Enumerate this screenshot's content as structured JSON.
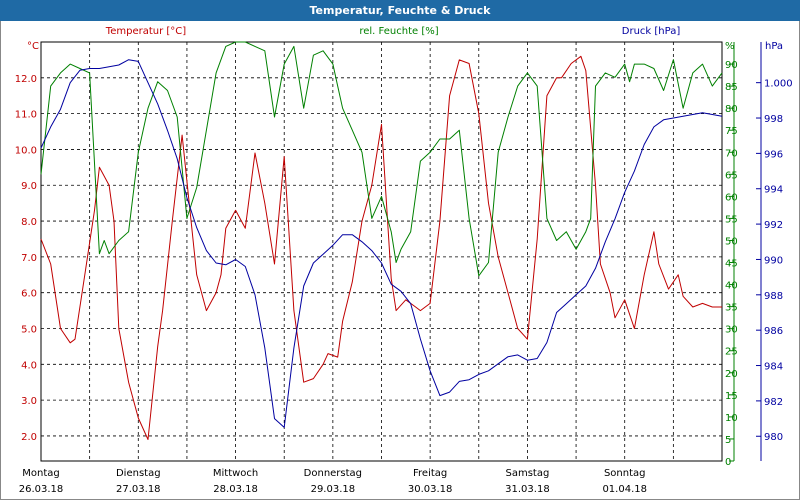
{
  "window": {
    "title": "Temperatur, Feuchte & Druck"
  },
  "colors": {
    "temperature": "#c00000",
    "humidity": "#008000",
    "pressure": "#0000a0",
    "grid": "#000000",
    "title_bg": "#1f6aa5"
  },
  "chart_data": {
    "type": "line",
    "title": "Temperatur, Feuchte & Druck",
    "grid": true,
    "x_days": [
      {
        "day": "Montag",
        "date": "26.03.18"
      },
      {
        "day": "Dienstag",
        "date": "27.03.18"
      },
      {
        "day": "Mittwoch",
        "date": "28.03.18"
      },
      {
        "day": "Donnerstag",
        "date": "29.03.18"
      },
      {
        "day": "Freitag",
        "date": "30.03.18"
      },
      {
        "day": "Samstag",
        "date": "31.03.18"
      },
      {
        "day": "Sonntag",
        "date": "01.04.18"
      }
    ],
    "xlim": [
      0,
      7
    ],
    "axes": {
      "left": {
        "label": "Temperatur [°C]",
        "unit": "°C",
        "ylim": [
          1.3,
          13.0
        ],
        "ticks": [
          "12.0",
          "11.0",
          "10.0",
          "9.0",
          "8.0",
          "7.0",
          "6.0",
          "5.0",
          "4.0",
          "3.0",
          "2.0"
        ],
        "tick_values": [
          12,
          11,
          10,
          9,
          8,
          7,
          6,
          5,
          4,
          3,
          2
        ]
      },
      "middle": {
        "label": "rel. Feuchte [%]",
        "unit": "%",
        "ylim": [
          0,
          95
        ],
        "ticks": [
          "90",
          "85",
          "80",
          "75",
          "70",
          "65",
          "60",
          "55",
          "50",
          "45",
          "40",
          "35",
          "30",
          "25",
          "20",
          "15",
          "10",
          "5",
          "0"
        ],
        "tick_values": [
          90,
          85,
          80,
          75,
          70,
          65,
          60,
          55,
          50,
          45,
          40,
          35,
          30,
          25,
          20,
          15,
          10,
          5,
          0
        ]
      },
      "right": {
        "label": "Druck [hPa]",
        "unit": "hPa",
        "ylim": [
          978.6,
          1002.3
        ],
        "ticks": [
          "1.000",
          "998",
          "996",
          "994",
          "992",
          "990",
          "988",
          "986",
          "984",
          "982",
          "980"
        ],
        "tick_values": [
          1000,
          998,
          996,
          994,
          992,
          990,
          988,
          986,
          984,
          982,
          980
        ]
      }
    },
    "series": [
      {
        "name": "Temperatur [°C]",
        "axis": "left",
        "x": [
          0,
          0.1,
          0.2,
          0.3,
          0.35,
          0.45,
          0.55,
          0.6,
          0.7,
          0.75,
          0.8,
          0.9,
          1.0,
          1.1,
          1.2,
          1.25,
          1.35,
          1.45,
          1.6,
          1.7,
          1.8,
          1.85,
          1.9,
          2.0,
          2.1,
          2.2,
          2.3,
          2.4,
          2.5,
          2.6,
          2.7,
          2.8,
          2.9,
          2.95,
          3.05,
          3.1,
          3.2,
          3.3,
          3.4,
          3.5,
          3.6,
          3.65,
          3.75,
          3.85,
          3.9,
          4.0,
          4.1,
          4.2,
          4.3,
          4.4,
          4.5,
          4.6,
          4.7,
          4.8,
          4.9,
          5.0,
          5.1,
          5.2,
          5.3,
          5.35,
          5.45,
          5.55,
          5.6,
          5.7,
          5.75,
          5.85,
          5.9,
          6.0,
          6.1,
          6.2,
          6.3,
          6.35,
          6.45,
          6.55,
          6.6,
          6.7,
          6.8,
          6.9,
          7.0
        ],
        "values": [
          7.5,
          6.8,
          5.0,
          4.6,
          4.7,
          6.5,
          8.3,
          9.5,
          9.0,
          8.0,
          5.0,
          3.5,
          2.5,
          1.9,
          4.5,
          5.5,
          8.0,
          10.4,
          6.5,
          5.5,
          6.0,
          6.5,
          7.8,
          8.3,
          7.8,
          9.9,
          8.5,
          6.8,
          9.8,
          5.5,
          3.5,
          3.6,
          4.0,
          4.3,
          4.2,
          5.2,
          6.3,
          8.0,
          9.0,
          10.7,
          6.4,
          5.5,
          5.8,
          5.6,
          5.5,
          5.7,
          8.0,
          11.5,
          12.5,
          12.4,
          11.0,
          8.5,
          7.0,
          6.0,
          5.0,
          4.7,
          7.5,
          11.5,
          12.0,
          12.0,
          12.4,
          12.6,
          12.2,
          9.0,
          6.8,
          6.0,
          5.3,
          5.8,
          5.0,
          6.5,
          7.7,
          6.8,
          6.1,
          6.5,
          5.9,
          5.6,
          5.7,
          5.6,
          5.6
        ]
      },
      {
        "name": "rel. Feuchte [%]",
        "axis": "middle",
        "x": [
          0,
          0.1,
          0.2,
          0.3,
          0.4,
          0.5,
          0.6,
          0.65,
          0.7,
          0.8,
          0.9,
          1.0,
          1.1,
          1.2,
          1.3,
          1.4,
          1.5,
          1.6,
          1.7,
          1.8,
          1.9,
          2.0,
          2.1,
          2.2,
          2.3,
          2.4,
          2.5,
          2.6,
          2.7,
          2.8,
          2.9,
          3.0,
          3.05,
          3.1,
          3.2,
          3.3,
          3.4,
          3.5,
          3.6,
          3.65,
          3.7,
          3.8,
          3.9,
          4.0,
          4.1,
          4.2,
          4.3,
          4.4,
          4.5,
          4.6,
          4.7,
          4.8,
          4.9,
          5.0,
          5.1,
          5.2,
          5.3,
          5.4,
          5.5,
          5.6,
          5.65,
          5.7,
          5.8,
          5.9,
          6.0,
          6.05,
          6.1,
          6.2,
          6.3,
          6.4,
          6.5,
          6.6,
          6.7,
          6.8,
          6.9,
          7.0
        ],
        "values": [
          65,
          85,
          88,
          90,
          89,
          88,
          47,
          50,
          47,
          50,
          52,
          70,
          80,
          86,
          84,
          78,
          55,
          62,
          75,
          88,
          94,
          95,
          95,
          94,
          93,
          78,
          90,
          94,
          80,
          92,
          93,
          90,
          85,
          80,
          75,
          70,
          55,
          60,
          52,
          45,
          48,
          52,
          68,
          70,
          73,
          73,
          75,
          55,
          42,
          45,
          70,
          78,
          85,
          88,
          85,
          55,
          50,
          52,
          48,
          52,
          55,
          85,
          88,
          87,
          90,
          86,
          90,
          90,
          89,
          84,
          91,
          80,
          88,
          90,
          85,
          88
        ]
      },
      {
        "name": "Druck [hPa]",
        "axis": "right",
        "x": [
          0,
          0.1,
          0.2,
          0.3,
          0.4,
          0.5,
          0.6,
          0.7,
          0.8,
          0.9,
          1.0,
          1.1,
          1.2,
          1.3,
          1.4,
          1.5,
          1.6,
          1.7,
          1.8,
          1.9,
          2.0,
          2.1,
          2.2,
          2.3,
          2.4,
          2.5,
          2.6,
          2.7,
          2.8,
          2.9,
          3.0,
          3.1,
          3.2,
          3.3,
          3.4,
          3.5,
          3.6,
          3.7,
          3.8,
          3.9,
          4.0,
          4.1,
          4.2,
          4.3,
          4.4,
          4.5,
          4.6,
          4.7,
          4.8,
          4.9,
          5.0,
          5.1,
          5.2,
          5.3,
          5.4,
          5.5,
          5.6,
          5.7,
          5.8,
          5.9,
          6.0,
          6.1,
          6.2,
          6.3,
          6.4,
          6.5,
          6.6,
          6.7,
          6.8,
          6.9,
          7.0
        ],
        "values": [
          996.3,
          997.5,
          998.5,
          1000.0,
          1000.7,
          1000.8,
          1000.8,
          1000.9,
          1001.0,
          1001.3,
          1001.2,
          1000.0,
          998.8,
          997.3,
          995.7,
          993.5,
          991.8,
          990.5,
          989.8,
          989.7,
          990.0,
          989.6,
          988.0,
          985.0,
          981.0,
          980.5,
          985.0,
          988.5,
          989.8,
          990.3,
          990.8,
          991.4,
          991.4,
          991.0,
          990.5,
          989.8,
          988.6,
          988.2,
          987.5,
          985.5,
          983.7,
          982.3,
          982.5,
          983.1,
          983.2,
          983.5,
          983.7,
          984.1,
          984.5,
          984.6,
          984.3,
          984.4,
          985.3,
          987.0,
          987.5,
          988.0,
          988.5,
          989.5,
          991.0,
          992.3,
          993.8,
          995.0,
          996.5,
          997.5,
          997.9,
          998.0,
          998.1,
          998.2,
          998.3,
          998.2,
          998.1
        ]
      }
    ]
  }
}
